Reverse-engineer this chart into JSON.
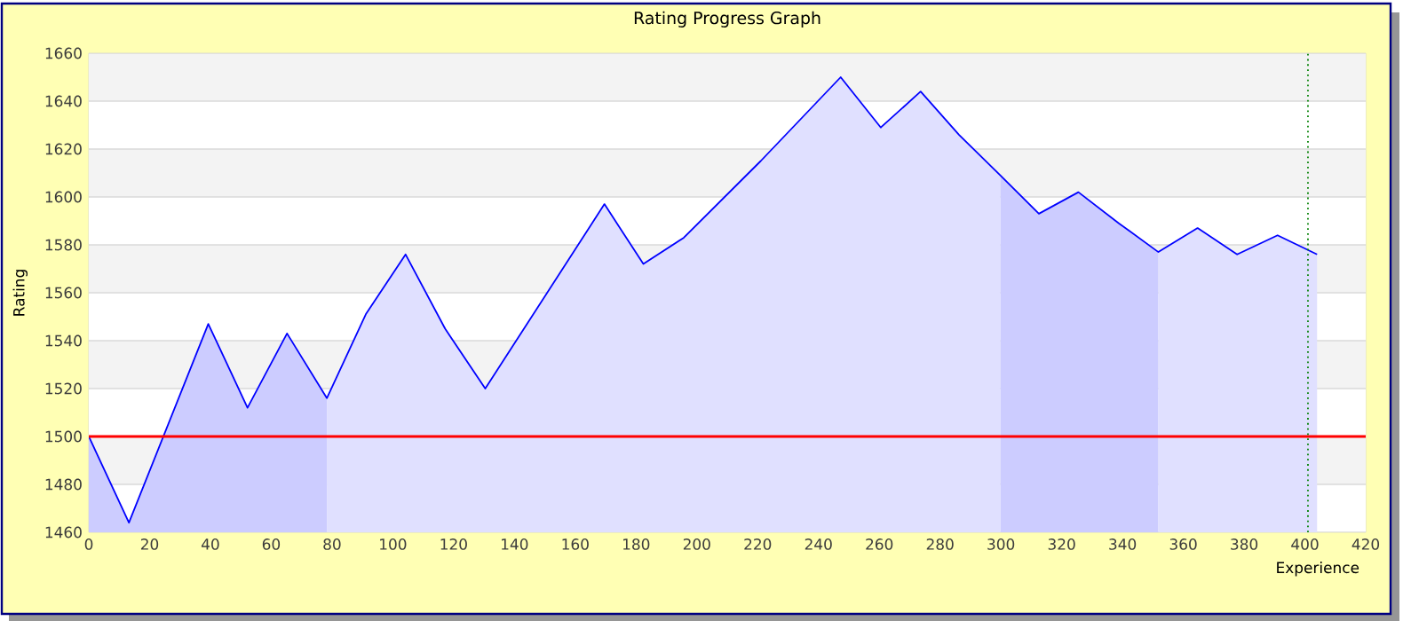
{
  "chart_data": {
    "type": "area",
    "title": "Rating Progress Graph",
    "xlabel": "Experience",
    "ylabel": "Rating",
    "x": [
      0,
      13.2,
      39.3,
      52.2,
      65.2,
      78.3,
      91.1,
      104.2,
      117.2,
      130.4,
      169.6,
      182.4,
      195.7,
      221,
      247.3,
      260.5,
      273.6,
      286.2,
      299.8,
      312.5,
      325.5,
      338.8,
      351.8,
      364.7,
      377.7,
      391,
      404
    ],
    "series": [
      {
        "color": "#0000ff",
        "values": [
          1500,
          1464,
          1547,
          1512,
          1543,
          1516,
          1551,
          1576,
          1545,
          1520,
          1597,
          1572,
          1583,
          1615,
          1650,
          1629,
          1644,
          1626,
          1609,
          1593,
          1602,
          1589,
          1577,
          1587,
          1576,
          1584,
          1576
        ]
      }
    ],
    "xlim": [
      0,
      420
    ],
    "xticks": [
      0,
      20,
      40,
      60,
      80,
      100,
      120,
      140,
      160,
      180,
      200,
      220,
      240,
      260,
      280,
      300,
      320,
      340,
      360,
      380,
      400,
      420
    ],
    "ylim": [
      1460,
      1660
    ],
    "yticks": [
      1460,
      1480,
      1500,
      1520,
      1540,
      1560,
      1580,
      1600,
      1620,
      1640,
      1660
    ],
    "grid": "y",
    "marker": "none",
    "ref_lines": [
      {
        "axis": "y",
        "value": 1500,
        "color": "#ff0000",
        "line_style": "solid"
      },
      {
        "axis": "x",
        "value": 401,
        "color": "#008000",
        "line_style": "dotted"
      }
    ],
    "bands": [
      {
        "axis": "x",
        "from": 0,
        "to": 78.3,
        "color": "#ccccff"
      },
      {
        "axis": "x",
        "from": 299.8,
        "to": 351.8,
        "color": "#ccccff"
      }
    ]
  }
}
